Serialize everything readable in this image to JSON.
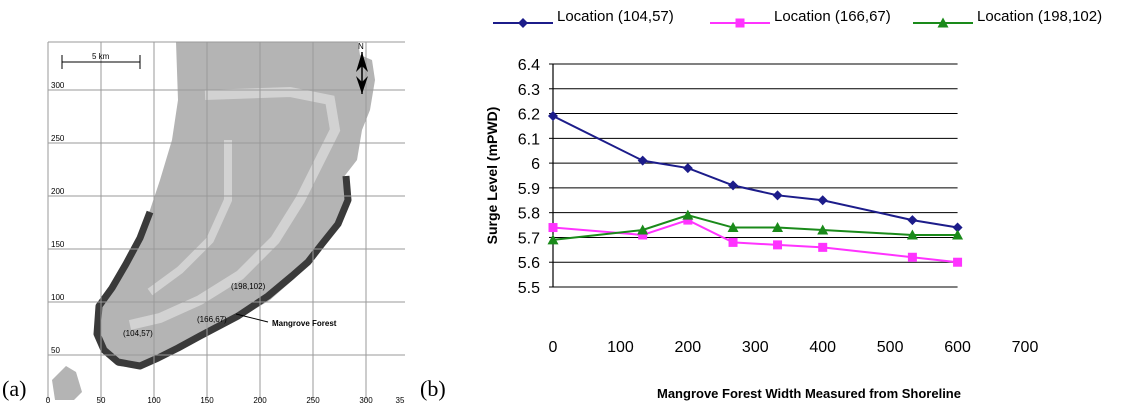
{
  "panels": {
    "a_label": "(a)",
    "b_label": "(b)"
  },
  "map": {
    "scale_label": "5 km",
    "north_label": "N",
    "x_ticks": [
      "0",
      "50",
      "100",
      "150",
      "200",
      "250",
      "300",
      "35"
    ],
    "y_ticks": [
      "300",
      "250",
      "200",
      "150",
      "100",
      "50"
    ],
    "point_labels": [
      "(104,57)",
      "(166,67)",
      "(198,102)"
    ],
    "annotation": "Mangrove Forest",
    "colors": {
      "land": "#b4b4b4",
      "inner_band": "#d2d2d2",
      "forest": "#3a3a3a",
      "grid": "#9a9a9a"
    }
  },
  "chart_data": {
    "type": "line",
    "title": "",
    "xlabel": "Mangrove Forest Width Measured from Shoreline",
    "ylabel": "Surge Level (mPWD)",
    "xlim": [
      0,
      700
    ],
    "ylim": [
      5.5,
      6.4
    ],
    "x_ticks": [
      "0",
      "100",
      "200",
      "300",
      "400",
      "500",
      "600",
      "700"
    ],
    "y_ticks": [
      "5.5",
      "5.6",
      "5.7",
      "5.8",
      "5.9",
      "6",
      "6.1",
      "6.2",
      "6.3",
      "6.4"
    ],
    "grid": "horizontal",
    "legend_position": "top",
    "x": [
      0,
      133,
      200,
      267,
      333,
      400,
      533,
      600
    ],
    "series": [
      {
        "name": "Location  (104,57)",
        "color": "#1c1c8a",
        "marker": "diamond",
        "values": [
          6.19,
          6.01,
          5.98,
          5.91,
          5.87,
          5.85,
          5.77,
          5.74
        ]
      },
      {
        "name": "Location  (166,67)",
        "color": "#ff33ff",
        "marker": "square",
        "values": [
          5.74,
          5.71,
          5.77,
          5.68,
          5.67,
          5.66,
          5.62,
          5.6
        ]
      },
      {
        "name": "Location  (198,102)",
        "color": "#1a8a1a",
        "marker": "triangle",
        "values": [
          5.69,
          5.73,
          5.79,
          5.74,
          5.74,
          5.73,
          5.71,
          5.71
        ]
      }
    ]
  }
}
